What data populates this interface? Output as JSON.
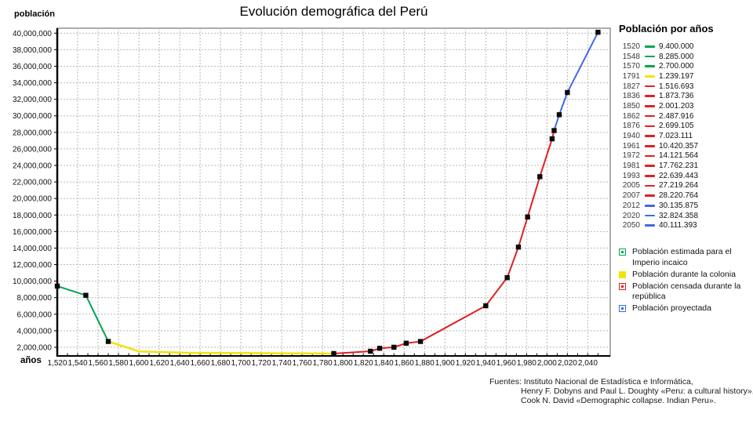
{
  "title": "Evolución demográfica del Perú",
  "y_axis_label": "población",
  "x_axis_label": "años",
  "colors": {
    "inca": "#00a550",
    "colonia": "#f2e30a",
    "republica": "#e02020",
    "proyectada": "#4169e1",
    "grid": "#b8b8b8",
    "axis": "#000000",
    "border": "#8a8a8a",
    "marker": "#0a0a0a",
    "tick_text": "#111111"
  },
  "chart_data": {
    "type": "line",
    "title": "Evolución demográfica del Perú",
    "xlabel": "años",
    "ylabel": "población",
    "xlim": [
      1520,
      2062
    ],
    "ylim": [
      950000,
      40600000
    ],
    "grid": true,
    "x_ticks": [
      1520,
      1540,
      1560,
      1580,
      1600,
      1620,
      1640,
      1660,
      1680,
      1700,
      1720,
      1740,
      1760,
      1780,
      1800,
      1820,
      1840,
      1860,
      1880,
      1900,
      1920,
      1940,
      1960,
      1980,
      2000,
      2020,
      2040
    ],
    "y_ticks": [
      2000000,
      4000000,
      6000000,
      8000000,
      10000000,
      12000000,
      14000000,
      16000000,
      18000000,
      20000000,
      22000000,
      24000000,
      26000000,
      28000000,
      30000000,
      32000000,
      34000000,
      36000000,
      38000000,
      40000000
    ],
    "points": [
      {
        "year": 1520,
        "value": 9400000,
        "period": "inca",
        "marker": true
      },
      {
        "year": 1548,
        "value": 8285000,
        "period": "inca",
        "marker": true
      },
      {
        "year": 1570,
        "value": 2700000,
        "period": "inca",
        "marker": true
      },
      {
        "year": 1600,
        "value": 1500000,
        "period": "colonia",
        "marker": false
      },
      {
        "year": 1650,
        "value": 1320000,
        "period": "colonia",
        "marker": false
      },
      {
        "year": 1700,
        "value": 1300000,
        "period": "colonia",
        "marker": false
      },
      {
        "year": 1750,
        "value": 1260000,
        "period": "colonia",
        "marker": false
      },
      {
        "year": 1791,
        "value": 1239197,
        "period": "colonia",
        "marker": true
      },
      {
        "year": 1827,
        "value": 1516693,
        "period": "republica",
        "marker": true
      },
      {
        "year": 1836,
        "value": 1873736,
        "period": "republica",
        "marker": true
      },
      {
        "year": 1850,
        "value": 2001203,
        "period": "republica",
        "marker": true
      },
      {
        "year": 1862,
        "value": 2487916,
        "period": "republica",
        "marker": true
      },
      {
        "year": 1876,
        "value": 2699105,
        "period": "republica",
        "marker": true
      },
      {
        "year": 1940,
        "value": 7023111,
        "period": "republica",
        "marker": true
      },
      {
        "year": 1961,
        "value": 10420357,
        "period": "republica",
        "marker": true
      },
      {
        "year": 1972,
        "value": 14121564,
        "period": "republica",
        "marker": true
      },
      {
        "year": 1981,
        "value": 17762231,
        "period": "republica",
        "marker": true
      },
      {
        "year": 1993,
        "value": 22639443,
        "period": "republica",
        "marker": true
      },
      {
        "year": 2005,
        "value": 27219264,
        "period": "republica",
        "marker": true
      },
      {
        "year": 2007,
        "value": 28220764,
        "period": "republica",
        "marker": true
      },
      {
        "year": 2012,
        "value": 30135875,
        "period": "proyectada",
        "marker": true
      },
      {
        "year": 2020,
        "value": 32824358,
        "period": "proyectada",
        "marker": true
      },
      {
        "year": 2050,
        "value": 40111393,
        "period": "proyectada",
        "marker": true
      }
    ]
  },
  "legend_years": {
    "title": "Población por años",
    "entries": [
      {
        "year": "1520",
        "value": "9.400.000",
        "period": "inca"
      },
      {
        "year": "1548",
        "value": "8.285.000",
        "period": "inca"
      },
      {
        "year": "1570",
        "value": "2.700.000",
        "period": "inca"
      },
      {
        "year": "1791",
        "value": "1.239.197",
        "period": "colonia"
      },
      {
        "year": "1827",
        "value": "1.516.693",
        "period": "republica"
      },
      {
        "year": "1836",
        "value": "1.873.736",
        "period": "republica"
      },
      {
        "year": "1850",
        "value": "2.001.203",
        "period": "republica"
      },
      {
        "year": "1862",
        "value": "2.487.916",
        "period": "republica"
      },
      {
        "year": "1876",
        "value": "2.699.105",
        "period": "republica"
      },
      {
        "year": "1940",
        "value": "7.023.111",
        "period": "republica"
      },
      {
        "year": "1961",
        "value": "10.420.357",
        "period": "republica"
      },
      {
        "year": "1972",
        "value": "14.121.564",
        "period": "republica"
      },
      {
        "year": "1981",
        "value": "17.762.231",
        "period": "republica"
      },
      {
        "year": "1993",
        "value": "22.639.443",
        "period": "republica"
      },
      {
        "year": "2005",
        "value": "27.219.264",
        "period": "republica"
      },
      {
        "year": "2007",
        "value": "28.220.764",
        "period": "republica"
      },
      {
        "year": "2012",
        "value": "30.135.875",
        "period": "proyectada"
      },
      {
        "year": "2020",
        "value": "32.824.358",
        "period": "proyectada"
      },
      {
        "year": "2050",
        "value": "40.111.393",
        "period": "proyectada"
      }
    ]
  },
  "legend_categories": [
    {
      "label": "Población estimada para el Imperio incaico",
      "period": "inca",
      "style": "dot"
    },
    {
      "label": "Población durante la colonia",
      "period": "colonia",
      "style": "solid"
    },
    {
      "label": "Población censada durante la república",
      "period": "republica",
      "style": "dot"
    },
    {
      "label": "Población proyectada",
      "period": "proyectada",
      "style": "dot"
    }
  ],
  "sources": [
    "Fuentes: Instituto Nacional de Estadística e Informática,",
    "Henry F. Dobyns and Paul L. Doughty  «Peru: a cultural history»,",
    "Cook N. David «Demographic collapse. Indian Peru»."
  ]
}
